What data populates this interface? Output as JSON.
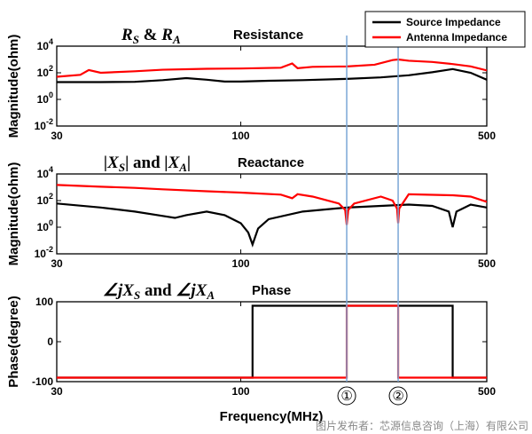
{
  "chart_data": {
    "type": "line",
    "xlabel": "Frequency(MHz)",
    "xlim": [
      30,
      500
    ],
    "x_scale": "log",
    "x_ticks": [
      30,
      100,
      500
    ],
    "legend": {
      "placement": "top-right",
      "entries": [
        "Source Impedance",
        "Antenna Impedance"
      ]
    },
    "colors": {
      "source": "#000000",
      "antenna": "#ff0000",
      "marker_line": "#7aa6d6"
    },
    "markers": [
      {
        "label": "①",
        "x": 200
      },
      {
        "label": "②",
        "x": 280
      }
    ],
    "panels": [
      {
        "id": "resistance",
        "math_title": {
          "a": "R",
          "a_sub": "S",
          "mid": " & ",
          "b": "R",
          "b_sub": "A"
        },
        "title": "Resistance",
        "ylabel": "Magnitude(ohm)",
        "y_scale": "log",
        "ylim": [
          0.01,
          10000
        ],
        "y_ticks": [
          {
            "value": 0.01,
            "base": "10",
            "exp": "-2"
          },
          {
            "value": 1,
            "base": "10",
            "exp": "0"
          },
          {
            "value": 100,
            "base": "10",
            "exp": "2"
          },
          {
            "value": 10000,
            "base": "10",
            "exp": "4"
          }
        ],
        "grid": false,
        "series": [
          {
            "name": "Source Impedance",
            "color": "#000000",
            "x": [
              30,
              40,
              50,
              60,
              70,
              80,
              90,
              100,
              120,
              150,
              200,
              250,
              300,
              350,
              400,
              450,
              500
            ],
            "y": [
              20,
              20,
              21,
              28,
              40,
              30,
              22,
              22,
              25,
              28,
              35,
              45,
              65,
              110,
              190,
              100,
              30
            ]
          },
          {
            "name": "Antenna Impedance",
            "color": "#ff0000",
            "x": [
              30,
              35,
              37,
              40,
              50,
              60,
              80,
              100,
              130,
              140,
              145,
              160,
              200,
              240,
              270,
              280,
              300,
              350,
              400,
              450,
              500
            ],
            "y": [
              50,
              70,
              160,
              100,
              130,
              170,
              200,
              210,
              240,
              500,
              220,
              280,
              300,
              400,
              900,
              1000,
              800,
              650,
              450,
              300,
              150
            ]
          }
        ]
      },
      {
        "id": "reactance",
        "math_title": {
          "a": "|X",
          "a_sub": "S",
          "mid": "| and ",
          "b": "|X",
          "b_sub": "A",
          "end": "|"
        },
        "title": "Reactance",
        "ylabel": "Magnitude(ohm)",
        "y_scale": "log",
        "ylim": [
          0.01,
          10000
        ],
        "y_ticks": [
          {
            "value": 0.01,
            "base": "10",
            "exp": "-2"
          },
          {
            "value": 1,
            "base": "10",
            "exp": "0"
          },
          {
            "value": 100,
            "base": "10",
            "exp": "2"
          },
          {
            "value": 10000,
            "base": "10",
            "exp": "4"
          }
        ],
        "grid": false,
        "series": [
          {
            "name": "Source Impedance",
            "color": "#000000",
            "x": [
              30,
              40,
              50,
              60,
              65,
              70,
              80,
              90,
              100,
              105,
              108,
              112,
              120,
              150,
              200,
              250,
              300,
              350,
              390,
              400,
              410,
              450,
              500
            ],
            "y": [
              60,
              30,
              15,
              7,
              5,
              8,
              15,
              8,
              2,
              0.4,
              0.05,
              0.8,
              4,
              15,
              30,
              40,
              50,
              40,
              15,
              1,
              15,
              50,
              30
            ]
          },
          {
            "name": "Antenna Impedance",
            "color": "#ff0000",
            "x": [
              30,
              40,
              50,
              60,
              80,
              100,
              130,
              140,
              145,
              160,
              190,
              198,
              200,
              202,
              210,
              250,
              270,
              278,
              280,
              282,
              300,
              400,
              450,
              500
            ],
            "y": [
              1500,
              1100,
              900,
              700,
              500,
              400,
              280,
              150,
              300,
              200,
              60,
              20,
              1.5,
              20,
              60,
              200,
              100,
              25,
              2,
              25,
              300,
              250,
              200,
              80
            ]
          }
        ]
      },
      {
        "id": "phase",
        "math_title": {
          "a": "∠jX",
          "a_sub": "S",
          "mid": " and ",
          "b": "∠jX",
          "b_sub": "A"
        },
        "title": "Phase",
        "ylabel": "Phase(degree)",
        "y_scale": "linear",
        "ylim": [
          -100,
          100
        ],
        "y_ticks": [
          {
            "value": -100,
            "label": "-100"
          },
          {
            "value": 0,
            "label": "0"
          },
          {
            "value": 100,
            "label": "100"
          }
        ],
        "grid": false,
        "series": [
          {
            "name": "Source Impedance",
            "color": "#000000",
            "x": [
              30,
              108,
              108,
              400,
              400,
              500
            ],
            "y": [
              -90,
              -90,
              90,
              90,
              -90,
              -90
            ]
          },
          {
            "name": "Antenna Impedance",
            "color": "#ff0000",
            "x": [
              30,
              200,
              200,
              280,
              280,
              500
            ],
            "y": [
              -90,
              -90,
              90,
              90,
              -90,
              -90
            ]
          }
        ]
      }
    ]
  },
  "watermark": "图片发布者：芯源信息咨询（上海）有限公司"
}
